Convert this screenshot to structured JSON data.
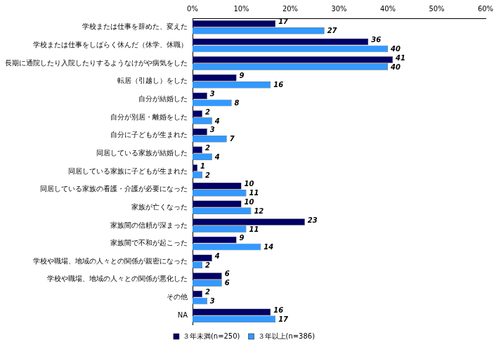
{
  "chart_data": {
    "type": "bar",
    "orientation": "horizontal",
    "categories": [
      "学校または仕事を辞めた、変えた",
      "学校または仕事をしばらく休んだ（休学、休職）",
      "長期に通院したり入院したりするようなけがや病気をした",
      "転居（引越し）をした",
      "自分が結婚した",
      "自分が別居・離婚をした",
      "自分に子どもが生まれた",
      "同居している家族が結婚した",
      "同居している家族に子どもが生まれた",
      "同居している家族の看護・介護が必要になった",
      "家族が亡くなった",
      "家族間の信頼が深まった",
      "家族間で不和が起こった",
      "学校や職場、地域の人々との関係が親密になった",
      "学校や職場、地域の人々との関係が悪化した",
      "その他",
      "NA"
    ],
    "series": [
      {
        "name": "３年未満(n=250)",
        "color": "#000066",
        "values": [
          17,
          36,
          41,
          9,
          3,
          2,
          3,
          2,
          1,
          10,
          10,
          23,
          9,
          4,
          6,
          2,
          16
        ]
      },
      {
        "name": "３年以上(n=386)",
        "color": "#3399ff",
        "values": [
          27,
          40,
          40,
          16,
          8,
          4,
          7,
          4,
          2,
          11,
          12,
          11,
          14,
          2,
          6,
          3,
          17
        ]
      }
    ],
    "xlim": [
      0,
      60
    ],
    "xticks": [
      {
        "value": 0,
        "label": "0%"
      },
      {
        "value": 10,
        "label": "10%"
      },
      {
        "value": 20,
        "label": "20%"
      },
      {
        "value": 30,
        "label": "30%"
      },
      {
        "value": 40,
        "label": "40%"
      },
      {
        "value": 50,
        "label": "50%"
      },
      {
        "value": 60,
        "label": "60%"
      }
    ],
    "grid": false,
    "data_labels": true,
    "legend": "bottom"
  }
}
